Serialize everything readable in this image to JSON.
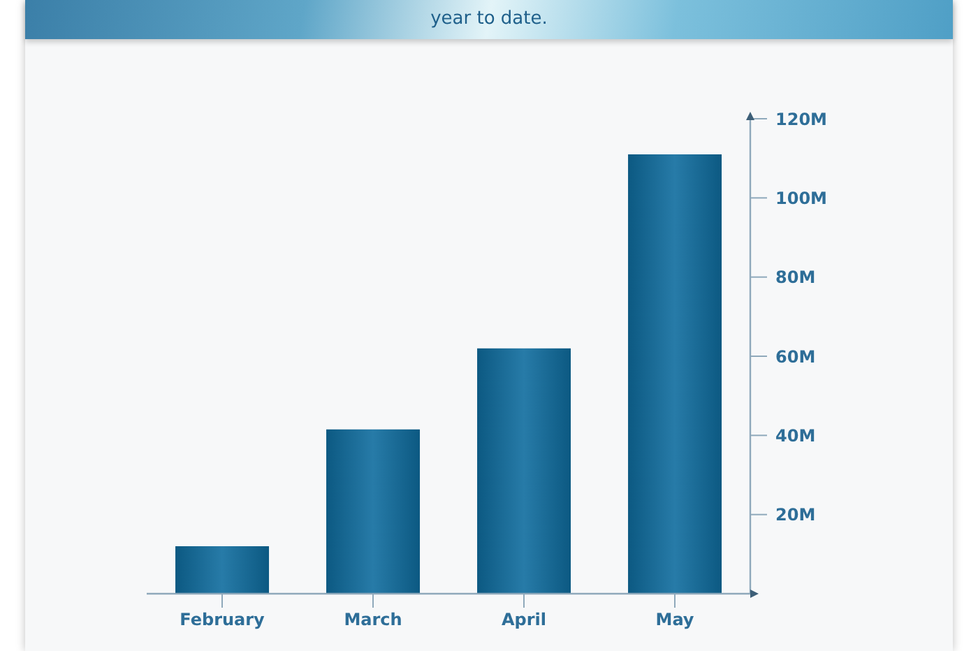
{
  "chart_data": {
    "type": "bar",
    "subtitle": "year to date.",
    "categories": [
      "February",
      "March",
      "April",
      "May"
    ],
    "values": [
      12,
      41.5,
      62,
      111
    ],
    "color": "#0f6c9e",
    "ylim": [
      0,
      120
    ],
    "yticks": [
      {
        "value": 20,
        "label": "20M"
      },
      {
        "value": 40,
        "label": "40M"
      },
      {
        "value": 60,
        "label": "60M"
      },
      {
        "value": 80,
        "label": "80M"
      },
      {
        "value": 100,
        "label": "100M"
      },
      {
        "value": 120,
        "label": "120M"
      }
    ]
  }
}
